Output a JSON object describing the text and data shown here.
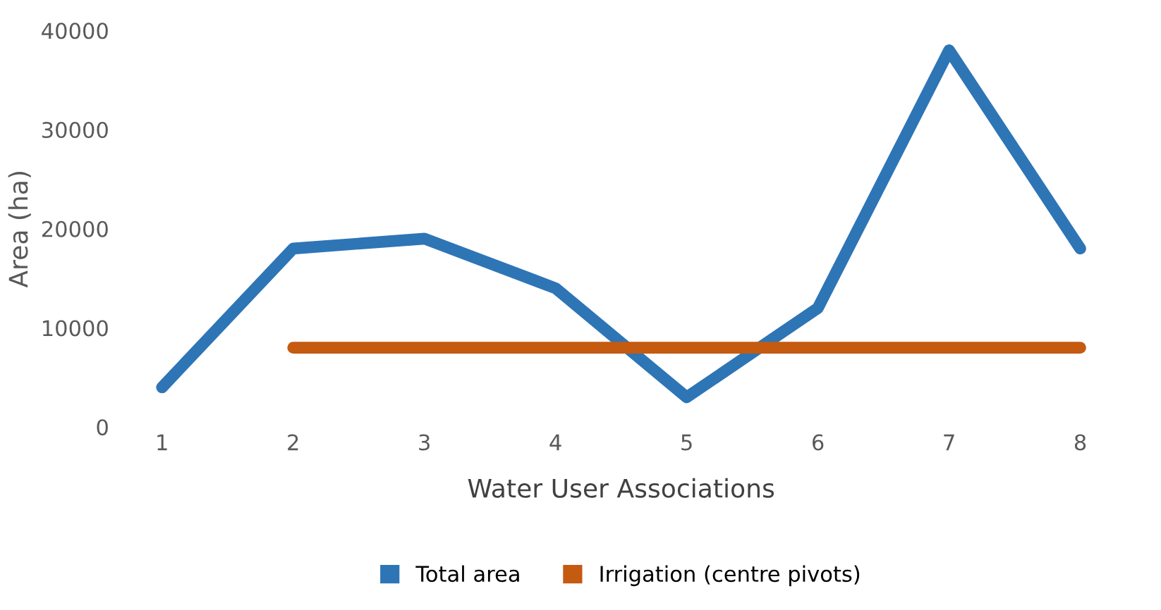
{
  "chart_data": {
    "type": "line",
    "xlabel": "Water User Associations",
    "ylabel": "Area (ha)",
    "categories": [
      "1",
      "2",
      "3",
      "4",
      "5",
      "6",
      "7",
      "8"
    ],
    "series": [
      {
        "name": "Total area",
        "color": "#2e75b6",
        "values": [
          4000,
          18000,
          19000,
          14000,
          3000,
          12000,
          38000,
          18000
        ]
      },
      {
        "name": "Irrigation (centre pivots)",
        "color": "#c55a11",
        "values": [
          null,
          8000,
          8000,
          8000,
          8000,
          8000,
          8000,
          8000
        ]
      }
    ],
    "ylim": [
      0,
      40000
    ],
    "yticks": [
      0,
      10000,
      20000,
      30000,
      40000
    ],
    "grid": false,
    "legend": "bottom",
    "marker": "none",
    "line_style": "solid"
  }
}
